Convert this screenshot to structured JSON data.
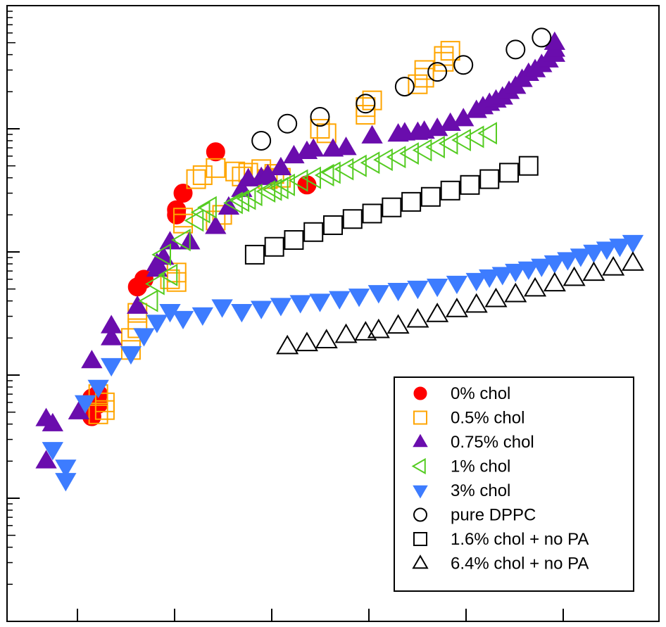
{
  "chart_data": {
    "type": "scatter",
    "title": "",
    "xlabel": "",
    "ylabel": "",
    "xscale": "linear",
    "yscale": "log",
    "xlim": [
      0,
      1
    ],
    "ylim": [
      0.001,
      100
    ],
    "x_tick_count": 6,
    "grid": false,
    "legend_position": "bottom-right",
    "series": [
      {
        "name": "0% chol",
        "marker": "filled-circle",
        "color": "#ff0000",
        "points": [
          [
            0.13,
            0.046
          ],
          [
            0.14,
            0.058
          ],
          [
            0.14,
            0.07
          ],
          [
            0.13,
            0.065
          ],
          [
            0.2,
            0.52
          ],
          [
            0.21,
            0.6
          ],
          [
            0.26,
            2.2
          ],
          [
            0.27,
            3.0
          ],
          [
            0.26,
            2.0
          ],
          [
            0.32,
            6.5
          ],
          [
            0.46,
            3.5
          ]
        ]
      },
      {
        "name": "0.5% chol",
        "marker": "open-square",
        "color": "#ffa500",
        "points": [
          [
            0.14,
            0.07
          ],
          [
            0.15,
            0.052
          ],
          [
            0.15,
            0.06
          ],
          [
            0.14,
            0.048
          ],
          [
            0.19,
            0.16
          ],
          [
            0.19,
            0.2
          ],
          [
            0.2,
            0.24
          ],
          [
            0.2,
            0.32
          ],
          [
            0.25,
            0.6
          ],
          [
            0.26,
            0.68
          ],
          [
            0.26,
            0.57
          ],
          [
            0.27,
            1.9
          ],
          [
            0.27,
            1.7
          ],
          [
            0.32,
            1.8
          ],
          [
            0.33,
            2.0
          ],
          [
            0.29,
            3.9
          ],
          [
            0.3,
            4.2
          ],
          [
            0.32,
            4.8
          ],
          [
            0.35,
            4.5
          ],
          [
            0.36,
            4.1
          ],
          [
            0.37,
            4.4
          ],
          [
            0.39,
            4.7
          ],
          [
            0.4,
            3.9
          ],
          [
            0.41,
            4.3
          ],
          [
            0.42,
            4.0
          ],
          [
            0.49,
            9.2
          ],
          [
            0.48,
            10
          ],
          [
            0.55,
            13
          ],
          [
            0.55,
            15
          ],
          [
            0.56,
            17
          ],
          [
            0.63,
            23
          ],
          [
            0.64,
            26
          ],
          [
            0.64,
            30
          ],
          [
            0.67,
            39
          ],
          [
            0.68,
            43
          ],
          [
            0.67,
            35
          ]
        ]
      },
      {
        "name": "0.75% chol",
        "marker": "filled-up-triangle",
        "color": "#6a0dad",
        "points": [
          [
            0.07,
            0.04
          ],
          [
            0.06,
            0.044
          ],
          [
            0.06,
            0.02
          ],
          [
            0.11,
            0.05
          ],
          [
            0.13,
            0.13
          ],
          [
            0.16,
            0.2
          ],
          [
            0.16,
            0.25
          ],
          [
            0.2,
            0.36
          ],
          [
            0.23,
            0.8
          ],
          [
            0.23,
            0.72
          ],
          [
            0.24,
            0.9
          ],
          [
            0.25,
            1.2
          ],
          [
            0.28,
            1.2
          ],
          [
            0.32,
            1.6
          ],
          [
            0.34,
            2.3
          ],
          [
            0.36,
            3.2
          ],
          [
            0.37,
            3.9
          ],
          [
            0.39,
            4.0
          ],
          [
            0.4,
            4.2
          ],
          [
            0.42,
            4.8
          ],
          [
            0.44,
            6.0
          ],
          [
            0.46,
            6.5
          ],
          [
            0.47,
            6.8
          ],
          [
            0.5,
            6.8
          ],
          [
            0.52,
            7.0
          ],
          [
            0.56,
            8.7
          ],
          [
            0.6,
            9.0
          ],
          [
            0.61,
            9.2
          ],
          [
            0.63,
            9.3
          ],
          [
            0.64,
            9.5
          ],
          [
            0.66,
            10
          ],
          [
            0.68,
            11
          ],
          [
            0.7,
            12
          ],
          [
            0.72,
            14
          ],
          [
            0.73,
            15
          ],
          [
            0.74,
            16
          ],
          [
            0.75,
            17
          ],
          [
            0.76,
            18
          ],
          [
            0.77,
            20
          ],
          [
            0.78,
            22
          ],
          [
            0.79,
            25
          ],
          [
            0.8,
            28
          ],
          [
            0.81,
            30
          ],
          [
            0.82,
            33
          ],
          [
            0.83,
            36
          ],
          [
            0.84,
            40
          ],
          [
            0.84,
            44
          ],
          [
            0.84,
            50
          ]
        ]
      },
      {
        "name": "1% chol",
        "marker": "open-left-triangle",
        "color": "#55cc22",
        "points": [
          [
            0.22,
            0.4
          ],
          [
            0.23,
            0.55
          ],
          [
            0.25,
            0.65
          ],
          [
            0.24,
            0.95
          ],
          [
            0.27,
            1.25
          ],
          [
            0.29,
            1.8
          ],
          [
            0.3,
            2.1
          ],
          [
            0.31,
            2.3
          ],
          [
            0.35,
            2.5
          ],
          [
            0.36,
            2.6
          ],
          [
            0.37,
            2.7
          ],
          [
            0.38,
            2.9
          ],
          [
            0.4,
            3.1
          ],
          [
            0.41,
            3.2
          ],
          [
            0.42,
            3.3
          ],
          [
            0.43,
            3.5
          ],
          [
            0.45,
            3.8
          ],
          [
            0.47,
            4.0
          ],
          [
            0.49,
            4.2
          ],
          [
            0.5,
            4.4
          ],
          [
            0.52,
            4.7
          ],
          [
            0.54,
            5.0
          ],
          [
            0.56,
            5.3
          ],
          [
            0.58,
            5.6
          ],
          [
            0.6,
            5.9
          ],
          [
            0.62,
            6.3
          ],
          [
            0.64,
            6.7
          ],
          [
            0.66,
            7.1
          ],
          [
            0.68,
            7.6
          ],
          [
            0.7,
            8.1
          ],
          [
            0.72,
            8.6
          ],
          [
            0.74,
            9.2
          ]
        ]
      },
      {
        "name": "3% chol",
        "marker": "filled-down-triangle",
        "color": "#3d7cff",
        "points": [
          [
            0.07,
            0.025
          ],
          [
            0.09,
            0.018
          ],
          [
            0.09,
            0.014
          ],
          [
            0.12,
            0.06
          ],
          [
            0.14,
            0.08
          ],
          [
            0.16,
            0.12
          ],
          [
            0.19,
            0.15
          ],
          [
            0.21,
            0.21
          ],
          [
            0.23,
            0.27
          ],
          [
            0.25,
            0.33
          ],
          [
            0.27,
            0.29
          ],
          [
            0.3,
            0.31
          ],
          [
            0.33,
            0.36
          ],
          [
            0.36,
            0.33
          ],
          [
            0.39,
            0.35
          ],
          [
            0.42,
            0.37
          ],
          [
            0.45,
            0.39
          ],
          [
            0.48,
            0.4
          ],
          [
            0.51,
            0.42
          ],
          [
            0.54,
            0.44
          ],
          [
            0.57,
            0.47
          ],
          [
            0.6,
            0.49
          ],
          [
            0.63,
            0.51
          ],
          [
            0.66,
            0.53
          ],
          [
            0.69,
            0.56
          ],
          [
            0.72,
            0.59
          ],
          [
            0.74,
            0.63
          ],
          [
            0.76,
            0.66
          ],
          [
            0.78,
            0.7
          ],
          [
            0.8,
            0.73
          ],
          [
            0.82,
            0.77
          ],
          [
            0.84,
            0.82
          ],
          [
            0.86,
            0.87
          ],
          [
            0.88,
            0.93
          ],
          [
            0.9,
            1.0
          ],
          [
            0.92,
            1.06
          ],
          [
            0.94,
            1.12
          ],
          [
            0.96,
            1.2
          ]
        ]
      },
      {
        "name": "pure DPPC",
        "marker": "open-circle",
        "color": "#000000",
        "points": [
          [
            0.39,
            8.0
          ],
          [
            0.43,
            11
          ],
          [
            0.48,
            12.5
          ],
          [
            0.55,
            16
          ],
          [
            0.61,
            22
          ],
          [
            0.66,
            29
          ],
          [
            0.7,
            33
          ],
          [
            0.78,
            44
          ],
          [
            0.82,
            55
          ]
        ]
      },
      {
        "name": "1.6% chol + no PA",
        "marker": "open-square",
        "color": "#000000",
        "points": [
          [
            0.38,
            0.95
          ],
          [
            0.41,
            1.1
          ],
          [
            0.44,
            1.25
          ],
          [
            0.47,
            1.45
          ],
          [
            0.5,
            1.65
          ],
          [
            0.53,
            1.85
          ],
          [
            0.56,
            2.05
          ],
          [
            0.59,
            2.3
          ],
          [
            0.62,
            2.55
          ],
          [
            0.65,
            2.8
          ],
          [
            0.68,
            3.15
          ],
          [
            0.71,
            3.5
          ],
          [
            0.74,
            3.9
          ],
          [
            0.77,
            4.4
          ],
          [
            0.8,
            5.0
          ]
        ]
      },
      {
        "name": "6.4% chol + no PA",
        "marker": "open-up-triangle",
        "color": "#000000",
        "points": [
          [
            0.43,
            0.17
          ],
          [
            0.46,
            0.18
          ],
          [
            0.49,
            0.19
          ],
          [
            0.52,
            0.21
          ],
          [
            0.55,
            0.22
          ],
          [
            0.57,
            0.23
          ],
          [
            0.6,
            0.25
          ],
          [
            0.63,
            0.28
          ],
          [
            0.66,
            0.31
          ],
          [
            0.69,
            0.34
          ],
          [
            0.72,
            0.37
          ],
          [
            0.75,
            0.41
          ],
          [
            0.78,
            0.45
          ],
          [
            0.81,
            0.5
          ],
          [
            0.84,
            0.55
          ],
          [
            0.87,
            0.61
          ],
          [
            0.9,
            0.67
          ],
          [
            0.93,
            0.74
          ],
          [
            0.96,
            0.81
          ]
        ]
      }
    ]
  }
}
